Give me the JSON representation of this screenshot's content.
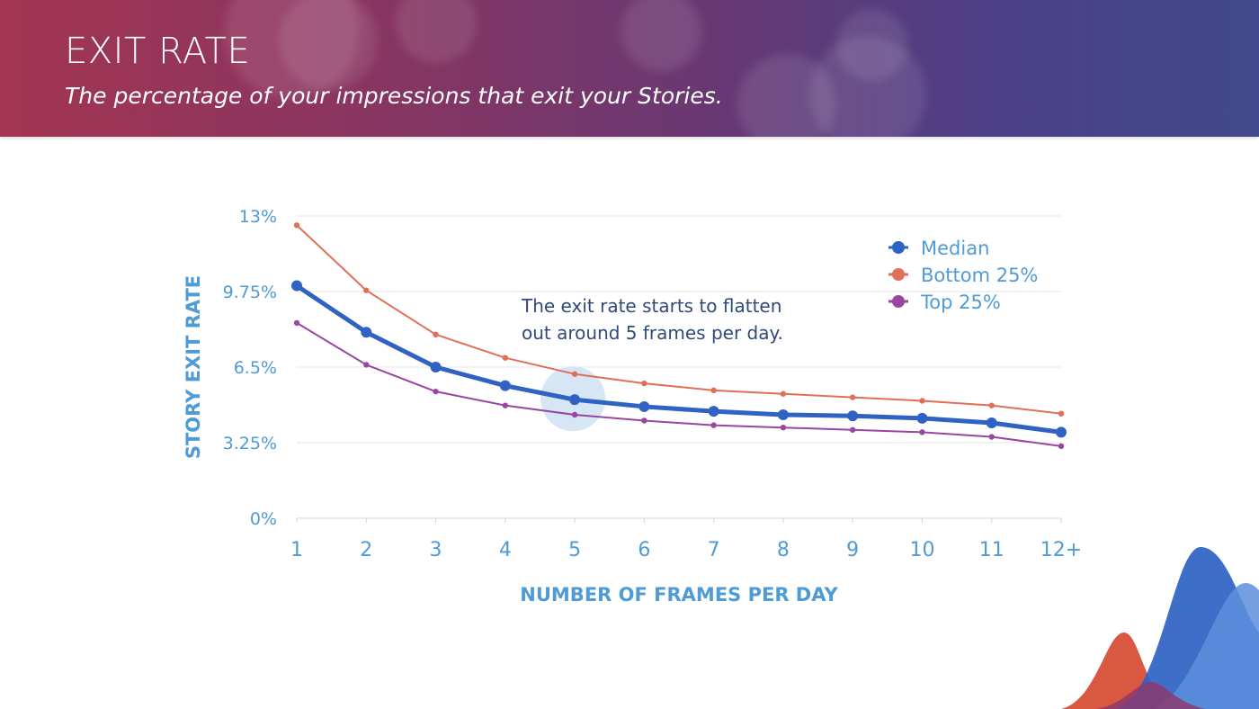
{
  "header": {
    "title": "EXIT RATE",
    "subtitle": "The percentage of your impressions that exit your Stories."
  },
  "colors": {
    "median": "#2f62c3",
    "bottom": "#e06f57",
    "top": "#9b45a3",
    "axis_text": "#4f9bd6",
    "annotation_text": "#2f4a7a",
    "highlight": "#c9def1"
  },
  "chart_data": {
    "type": "line",
    "xlabel": "NUMBER OF FRAMES PER DAY",
    "ylabel": "STORY EXIT RATE",
    "categories": [
      "1",
      "2",
      "3",
      "4",
      "5",
      "6",
      "7",
      "8",
      "9",
      "10",
      "11",
      "12+"
    ],
    "y_ticks": [
      "0%",
      "3.25%",
      "6.5%",
      "9.75%",
      "13%"
    ],
    "ylim": [
      0,
      13
    ],
    "grid": true,
    "legend_position": "top-right",
    "series": [
      {
        "name": "Median",
        "values": [
          10.0,
          8.0,
          6.5,
          5.7,
          5.1,
          4.8,
          4.6,
          4.45,
          4.4,
          4.3,
          4.1,
          3.7
        ]
      },
      {
        "name": "Bottom 25%",
        "values": [
          12.6,
          9.8,
          7.9,
          6.9,
          6.2,
          5.8,
          5.5,
          5.35,
          5.2,
          5.05,
          4.85,
          4.5
        ]
      },
      {
        "name": "Top 25%",
        "values": [
          8.4,
          6.6,
          5.45,
          4.85,
          4.45,
          4.2,
          4.0,
          3.9,
          3.8,
          3.7,
          3.5,
          3.1
        ]
      }
    ],
    "annotation": {
      "lines": [
        "The exit rate starts to flatten",
        "out around 5 frames per day."
      ],
      "highlight_category": "5"
    }
  }
}
